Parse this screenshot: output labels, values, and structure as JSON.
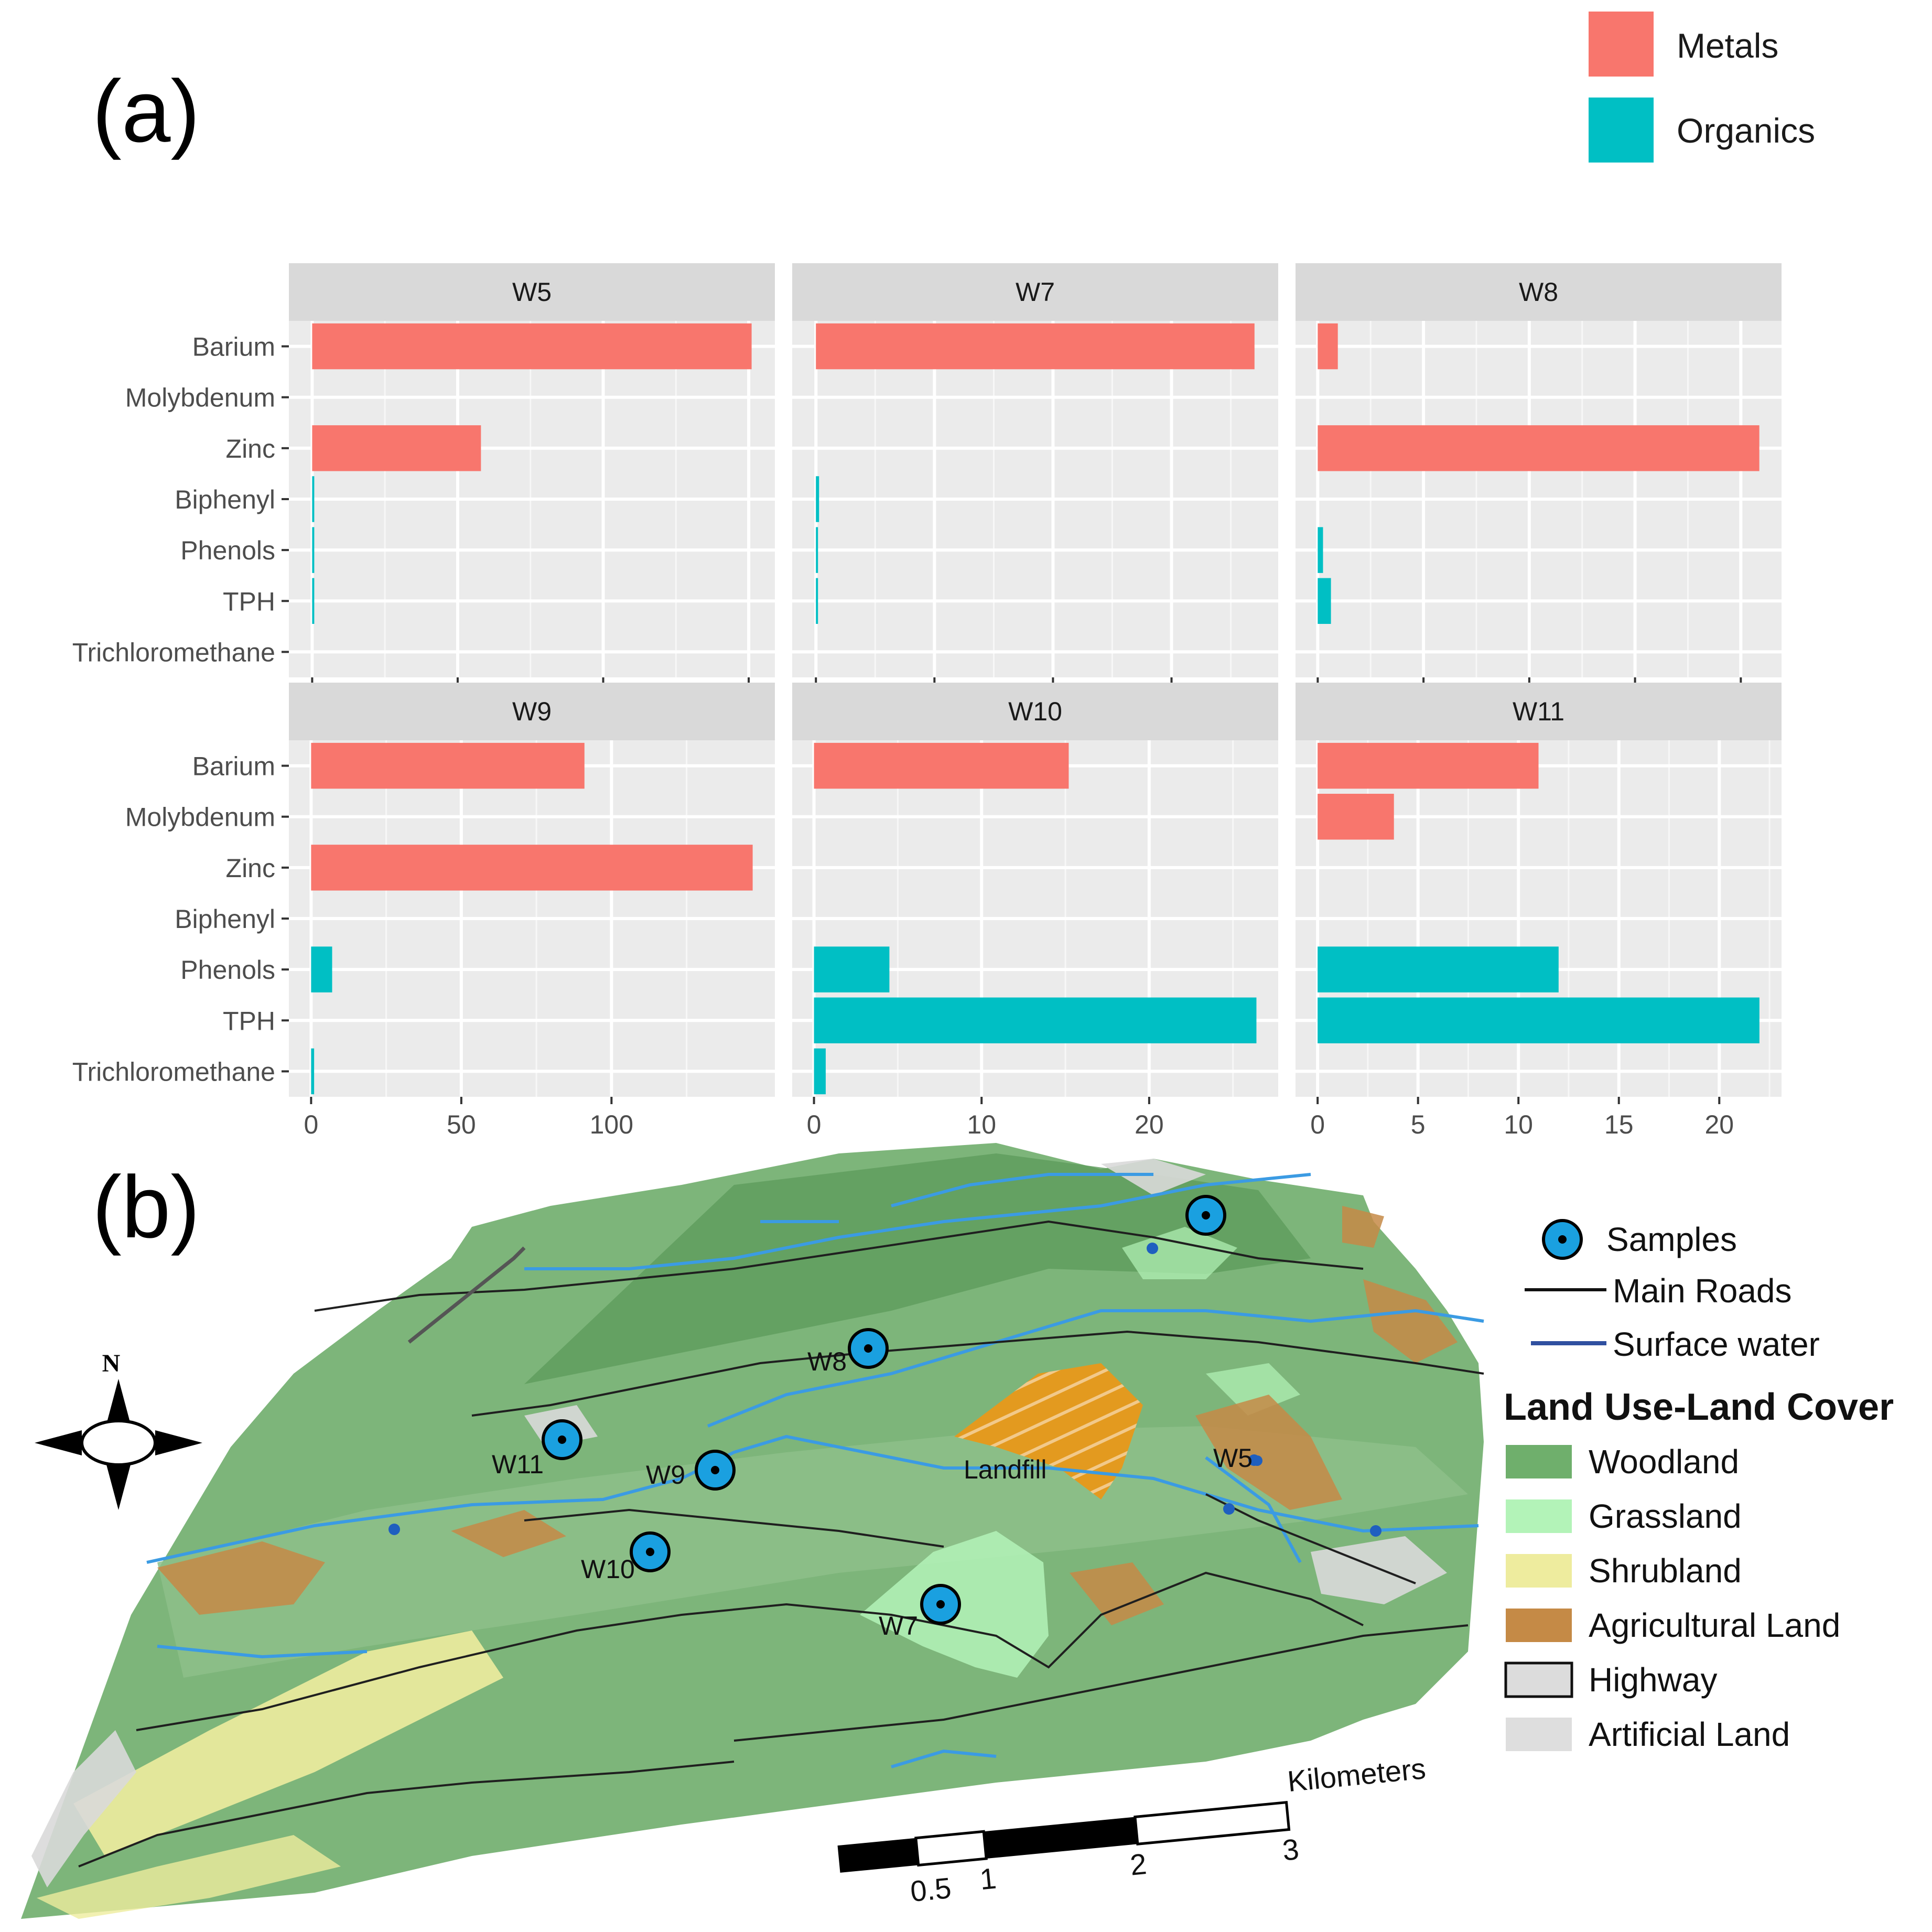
{
  "panel_a_label": "(a)",
  "panel_b_label": "(b)",
  "legend": [
    {
      "name": "Metals",
      "color": "#F8766D"
    },
    {
      "name": "Organics",
      "color": "#00BFC4"
    }
  ],
  "chart_data": {
    "type": "bar",
    "orientation": "horizontal",
    "categories": [
      "Barium",
      "Molybdenum",
      "Zinc",
      "Biphenyl",
      "Phenols",
      "TPH",
      "Trichloromethane"
    ],
    "category_groups": {
      "Barium": "Metals",
      "Molybdenum": "Metals",
      "Zinc": "Metals",
      "Biphenyl": "Organics",
      "Phenols": "Organics",
      "TPH": "Organics",
      "Trichloromethane": "Organics"
    },
    "grid": true,
    "legend_position": "top-right",
    "facets": [
      {
        "name": "W5",
        "values": [
          15.1,
          0,
          5.8,
          0.04,
          0.03,
          0.03,
          0
        ],
        "xlim": [
          -0.8,
          15.9
        ],
        "ticks": [
          0,
          5,
          10,
          15
        ]
      },
      {
        "name": "W7",
        "values": [
          11.1,
          0,
          0,
          0.08,
          0.02,
          0.02,
          0
        ],
        "xlim": [
          -0.6,
          11.7
        ],
        "ticks": [
          0,
          3,
          6,
          9
        ]
      },
      {
        "name": "W8",
        "values": [
          38,
          0,
          835,
          0,
          10,
          25,
          0
        ],
        "xlim": [
          -42,
          877
        ],
        "ticks": [
          0,
          200,
          400,
          600,
          800
        ]
      },
      {
        "name": "W9",
        "values": [
          91,
          0,
          147,
          0,
          7,
          0,
          1
        ],
        "xlim": [
          -7.4,
          154.4
        ],
        "ticks": [
          0,
          50,
          100
        ]
      },
      {
        "name": "W10",
        "values": [
          15.2,
          0,
          0,
          0,
          4.5,
          26.4,
          0.7
        ],
        "xlim": [
          -1.3,
          27.7
        ],
        "ticks": [
          0,
          10,
          20
        ]
      },
      {
        "name": "W11",
        "values": [
          11,
          3.8,
          0,
          0,
          12,
          22,
          0
        ],
        "xlim": [
          -1.1,
          23.1
        ],
        "ticks": [
          0,
          5,
          10,
          15,
          20
        ]
      }
    ]
  },
  "map": {
    "samples": [
      {
        "name": "W5"
      },
      {
        "name": "W7"
      },
      {
        "name": "W8"
      },
      {
        "name": "W9"
      },
      {
        "name": "W10"
      },
      {
        "name": "W11"
      }
    ],
    "landfill_label": "Landfill",
    "north_label": "N",
    "legend": {
      "samples": "Samples",
      "roads": "Main Roads",
      "water": "Surface water",
      "title": "Land Use-Land Cover",
      "classes": [
        {
          "name": "Woodland",
          "color": "#6FAF6C"
        },
        {
          "name": "Grassland",
          "color": "#B3F3B8"
        },
        {
          "name": "Shrubland",
          "color": "#EEEC9E"
        },
        {
          "name": "Agricultural Land",
          "color": "#C58A46"
        },
        {
          "name": "Highway",
          "color": "#DCDCDC"
        },
        {
          "name": "Artificial Land",
          "color": "#DEDEDE"
        }
      ]
    },
    "scale": {
      "labels": [
        "0.5",
        "1",
        "2",
        "3"
      ],
      "unit": "Kilometers"
    }
  }
}
